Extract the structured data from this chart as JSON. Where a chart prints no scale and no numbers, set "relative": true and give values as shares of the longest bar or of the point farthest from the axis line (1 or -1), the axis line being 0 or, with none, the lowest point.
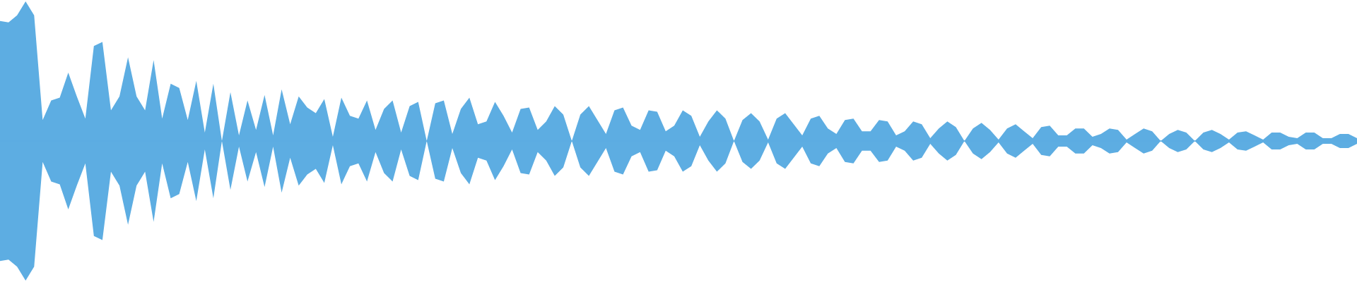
{
  "chart_data": {
    "type": "area",
    "relative": true,
    "ref_lines": [
      {
        "axis": "y",
        "value": 0,
        "color": "#5dade2"
      }
    ],
    "categories": [
      null,
      null,
      null,
      null,
      null,
      null,
      null,
      null,
      null,
      null,
      null,
      null,
      null,
      null,
      null,
      null,
      null,
      null,
      null,
      null,
      null,
      null,
      null,
      null,
      null,
      null,
      null,
      null,
      null,
      null,
      null,
      null,
      null,
      null,
      null,
      null,
      null,
      null,
      null,
      null,
      null,
      null,
      null,
      null,
      null,
      null,
      null,
      null,
      null,
      null,
      null,
      null,
      null,
      null,
      null,
      null,
      null,
      null,
      null,
      null,
      null,
      null,
      null,
      null,
      null,
      null,
      null,
      null,
      null,
      null,
      null,
      null,
      null,
      null,
      null,
      null,
      null,
      null,
      null,
      null,
      null,
      null,
      null,
      null,
      null,
      null,
      null,
      null,
      null,
      null,
      null,
      null,
      null,
      null,
      null,
      null,
      null,
      null,
      null,
      null,
      null,
      null,
      null,
      null,
      null,
      null,
      null,
      null,
      null,
      null,
      null,
      null,
      null,
      null,
      null,
      null,
      null,
      null,
      null,
      null,
      null,
      null,
      null,
      null,
      null,
      null,
      null,
      null,
      null,
      null,
      null,
      null,
      null,
      null,
      null,
      null,
      null,
      null,
      null,
      null,
      null,
      null,
      null,
      null,
      null,
      null,
      null,
      null,
      null,
      null,
      null,
      null,
      null,
      null,
      null,
      null,
      null,
      null,
      null,
      null
    ],
    "series": [
      {
        "color": "#5dade2",
        "values": [
          0.86,
          0.85,
          0.9,
          1.0,
          0.9,
          0.15,
          0.29,
          0.31,
          0.49,
          0.32,
          0.16,
          0.68,
          0.71,
          0.22,
          0.32,
          0.6,
          0.32,
          0.22,
          0.58,
          0.16,
          0.41,
          0.38,
          0.15,
          0.43,
          0.06,
          0.41,
          0,
          0.35,
          0.04,
          0.29,
          0.08,
          0.33,
          0.04,
          0.37,
          0.12,
          0.32,
          0.24,
          0.2,
          0.3,
          0.03,
          0.31,
          0.18,
          0.16,
          0.29,
          0.08,
          0.23,
          0.29,
          0.06,
          0.25,
          0.28,
          0,
          0.27,
          0.29,
          0.05,
          0.23,
          0.31,
          0.12,
          0.14,
          0.28,
          0.18,
          0.06,
          0.23,
          0.24,
          0.08,
          0.14,
          0.25,
          0.19,
          0,
          0.19,
          0.25,
          0.15,
          0.05,
          0.22,
          0.24,
          0.11,
          0.08,
          0.22,
          0.21,
          0.07,
          0.11,
          0.22,
          0.18,
          0.03,
          0.14,
          0.22,
          0.16,
          0,
          0.15,
          0.2,
          0.14,
          0.01,
          0.16,
          0.2,
          0.12,
          0.04,
          0.16,
          0.18,
          0.09,
          0.05,
          0.15,
          0.16,
          0.07,
          0.07,
          0.15,
          0.14,
          0.04,
          0.07,
          0.14,
          0.12,
          0.02,
          0.09,
          0.14,
          0.1,
          0,
          0.09,
          0.13,
          0.08,
          0.01,
          0.09,
          0.12,
          0.07,
          0.02,
          0.1,
          0.11,
          0.04,
          0.04,
          0.09,
          0.09,
          0.03,
          0.05,
          0.09,
          0.08,
          0.01,
          0.05,
          0.09,
          0.07,
          0,
          0.05,
          0.08,
          0.06,
          0,
          0.06,
          0.08,
          0.05,
          0.01,
          0.06,
          0.07,
          0.04,
          0.01,
          0.06,
          0.06,
          0.03,
          0.02,
          0.06,
          0.06,
          0.02,
          0.02,
          0.05,
          0.05,
          0.02
        ]
      },
      {
        "color": "#5dade2",
        "values": [
          -0.86,
          -0.85,
          -0.9,
          -1.0,
          -0.9,
          -0.15,
          -0.29,
          -0.31,
          -0.49,
          -0.32,
          -0.16,
          -0.68,
          -0.71,
          -0.22,
          -0.32,
          -0.6,
          -0.32,
          -0.22,
          -0.58,
          -0.16,
          -0.41,
          -0.38,
          -0.15,
          -0.43,
          -0.06,
          -0.41,
          0,
          -0.35,
          -0.04,
          -0.29,
          -0.08,
          -0.33,
          -0.04,
          -0.37,
          -0.12,
          -0.32,
          -0.24,
          -0.2,
          -0.3,
          -0.03,
          -0.31,
          -0.18,
          -0.16,
          -0.29,
          -0.08,
          -0.23,
          -0.29,
          -0.06,
          -0.25,
          -0.28,
          0,
          -0.27,
          -0.29,
          -0.05,
          -0.23,
          -0.31,
          -0.12,
          -0.14,
          -0.28,
          -0.18,
          -0.06,
          -0.23,
          -0.24,
          -0.08,
          -0.14,
          -0.25,
          -0.19,
          0,
          -0.19,
          -0.25,
          -0.15,
          -0.05,
          -0.22,
          -0.24,
          -0.11,
          -0.08,
          -0.22,
          -0.21,
          -0.07,
          -0.11,
          -0.22,
          -0.18,
          -0.03,
          -0.14,
          -0.22,
          -0.16,
          0,
          -0.15,
          -0.2,
          -0.14,
          -0.01,
          -0.16,
          -0.2,
          -0.12,
          -0.04,
          -0.16,
          -0.18,
          -0.09,
          -0.05,
          -0.15,
          -0.16,
          -0.07,
          -0.07,
          -0.15,
          -0.14,
          -0.04,
          -0.07,
          -0.14,
          -0.12,
          -0.02,
          -0.09,
          -0.14,
          -0.1,
          0,
          -0.09,
          -0.13,
          -0.08,
          -0.01,
          -0.09,
          -0.12,
          -0.07,
          -0.02,
          -0.1,
          -0.11,
          -0.04,
          -0.04,
          -0.09,
          -0.09,
          -0.03,
          -0.05,
          -0.09,
          -0.08,
          -0.01,
          -0.05,
          -0.09,
          -0.07,
          0,
          -0.05,
          -0.08,
          -0.06,
          0,
          -0.06,
          -0.08,
          -0.05,
          -0.01,
          -0.06,
          -0.07,
          -0.04,
          -0.01,
          -0.06,
          -0.06,
          -0.03,
          -0.02,
          -0.06,
          -0.06,
          -0.02,
          -0.02,
          -0.05,
          -0.05,
          -0.02
        ]
      }
    ]
  }
}
